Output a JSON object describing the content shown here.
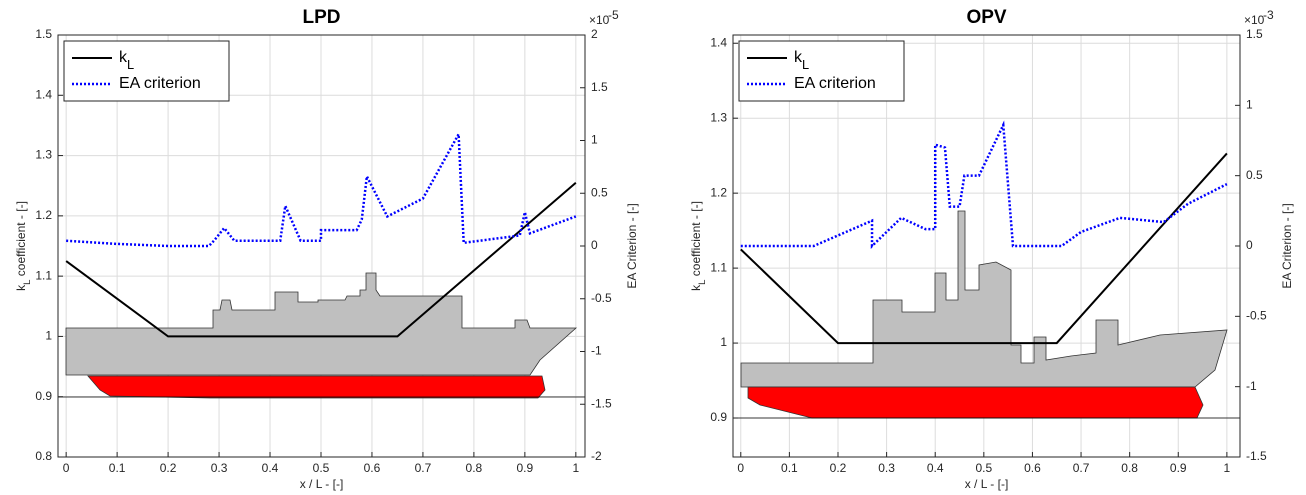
{
  "chart_data": [
    {
      "type": "line",
      "title": "LPD",
      "x_label": "x / L - [-]",
      "y_label": "kL coefficient - [-]",
      "y2_label": "EA Criterion - [-]",
      "y2_multiplier": {
        "base": "×10",
        "exponent": "-5"
      },
      "xlim": [
        -0.016,
        1.018
      ],
      "xticks": [
        0,
        0.1,
        0.2,
        0.3,
        0.4,
        0.5,
        0.6,
        0.7,
        0.8,
        0.9,
        1
      ],
      "ylim": [
        0.8,
        1.5
      ],
      "yticks": [
        0.8,
        0.9,
        1,
        1.1,
        1.2,
        1.3,
        1.4,
        1.5
      ],
      "y2lim": [
        -2,
        2
      ],
      "y2ticks": [
        -2,
        -1.5,
        -1,
        -0.5,
        0,
        0.5,
        1,
        1.5,
        2
      ],
      "grid": true,
      "legend": "upper left",
      "series": [
        {
          "name": "kL",
          "color": "#000000",
          "style": "solid",
          "x": [
            0,
            0.2,
            0.65,
            1
          ],
          "values": [
            1.125,
            1.0,
            1.0,
            1.255
          ]
        },
        {
          "name": "EA criterion",
          "color": "#0000ff",
          "style": "dotted",
          "axis": "y2",
          "x": [
            0,
            0.1,
            0.2,
            0.28,
            0.29,
            0.31,
            0.33,
            0.42,
            0.43,
            0.46,
            0.5,
            0.5,
            0.57,
            0.58,
            0.59,
            0.63,
            0.7,
            0.77,
            0.78,
            0.89,
            0.9,
            0.91,
            1
          ],
          "values": [
            0.05,
            0.02,
            0.0,
            0.0,
            0.05,
            0.17,
            0.05,
            0.05,
            0.38,
            0.05,
            0.05,
            0.15,
            0.15,
            0.25,
            0.66,
            0.28,
            0.45,
            1.06,
            0.03,
            0.1,
            0.32,
            0.12,
            0.28
          ]
        }
      ]
    },
    {
      "type": "line",
      "title": "OPV",
      "x_label": "x / L - [-]",
      "y_label": "kL coefficient - [-]",
      "y2_label": "EA Criterion - [-]",
      "y2_multiplier": {
        "base": "×10",
        "exponent": "-3"
      },
      "xlim": [
        -0.016,
        1.027
      ],
      "xticks": [
        0,
        0.1,
        0.2,
        0.3,
        0.4,
        0.5,
        0.6,
        0.7,
        0.8,
        0.9,
        1
      ],
      "ylim": [
        0.848,
        1.411
      ],
      "yticks": [
        0.9,
        1,
        1.1,
        1.2,
        1.3,
        1.4
      ],
      "y2lim": [
        -1.5,
        1.5
      ],
      "y2ticks": [
        -1.5,
        -1,
        -0.5,
        0,
        0.5,
        1,
        1.5
      ],
      "grid": true,
      "legend": "upper left",
      "series": [
        {
          "name": "kL",
          "color": "#000000",
          "style": "solid",
          "x": [
            0,
            0.2,
            0.65,
            1
          ],
          "values": [
            1.125,
            1.0,
            1.0,
            1.253
          ]
        },
        {
          "name": "EA criterion",
          "color": "#0000ff",
          "style": "dotted",
          "axis": "y2",
          "x": [
            0,
            0.15,
            0.27,
            0.27,
            0.33,
            0.38,
            0.4,
            0.4,
            0.42,
            0.43,
            0.45,
            0.46,
            0.49,
            0.54,
            0.56,
            0.66,
            0.7,
            0.78,
            0.87,
            0.92,
            1
          ],
          "values": [
            0.0,
            0.0,
            0.18,
            0.0,
            0.2,
            0.12,
            0.12,
            0.72,
            0.7,
            0.28,
            0.28,
            0.5,
            0.5,
            0.86,
            0.0,
            0.0,
            0.1,
            0.2,
            0.17,
            0.3,
            0.44
          ]
        }
      ]
    }
  ]
}
